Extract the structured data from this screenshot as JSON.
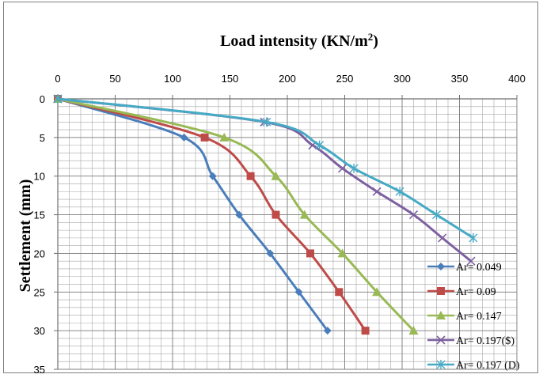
{
  "chart_data": {
    "type": "line",
    "title": "Load intensity (KN/m²)",
    "title_main": "Load intensity (KN/m",
    "title_sup": "2",
    "title_end": ")",
    "xlabel": "",
    "ylabel": "Settlement (mm)",
    "xlim": [
      0,
      400
    ],
    "ylim": [
      0,
      35
    ],
    "y_inverted": true,
    "x_axis_position": "top",
    "x_ticks": [
      0,
      50,
      100,
      150,
      200,
      250,
      300,
      350,
      400
    ],
    "y_ticks": [
      0,
      5,
      10,
      15,
      20,
      25,
      30,
      35
    ],
    "grid": true,
    "legend_position": "bottom-right",
    "series": [
      {
        "name": "Ar= 0.049",
        "color": "#4a7ebb",
        "marker": "diamond",
        "points": [
          [
            0,
            0
          ],
          [
            110,
            5
          ],
          [
            135,
            10
          ],
          [
            158,
            15
          ],
          [
            185,
            20
          ],
          [
            210,
            25
          ],
          [
            235,
            30
          ]
        ]
      },
      {
        "name": "Ar= 0.09",
        "color": "#be4b48",
        "marker": "square",
        "points": [
          [
            0,
            0
          ],
          [
            128,
            5
          ],
          [
            168,
            10
          ],
          [
            190,
            15
          ],
          [
            220,
            20
          ],
          [
            245,
            25
          ],
          [
            268,
            30
          ]
        ]
      },
      {
        "name": "Ar= 0.147",
        "color": "#98b954",
        "marker": "triangle",
        "points": [
          [
            0,
            0
          ],
          [
            145,
            5
          ],
          [
            190,
            10
          ],
          [
            215,
            15
          ],
          [
            248,
            20
          ],
          [
            278,
            25
          ],
          [
            310,
            30
          ]
        ]
      },
      {
        "name": "Ar= 0.197($)",
        "color": "#7d60a0",
        "marker": "x",
        "points": [
          [
            0,
            0
          ],
          [
            180,
            3
          ],
          [
            222,
            6
          ],
          [
            248,
            9
          ],
          [
            278,
            12
          ],
          [
            310,
            15
          ],
          [
            335,
            18
          ],
          [
            360,
            21
          ]
        ]
      },
      {
        "name": "Ar= 0.197 (D)",
        "color": "#46aac5",
        "marker": "star",
        "points": [
          [
            0,
            0
          ],
          [
            182,
            3
          ],
          [
            228,
            6
          ],
          [
            258,
            9
          ],
          [
            298,
            12
          ],
          [
            330,
            15
          ],
          [
            362,
            18
          ]
        ]
      }
    ]
  }
}
